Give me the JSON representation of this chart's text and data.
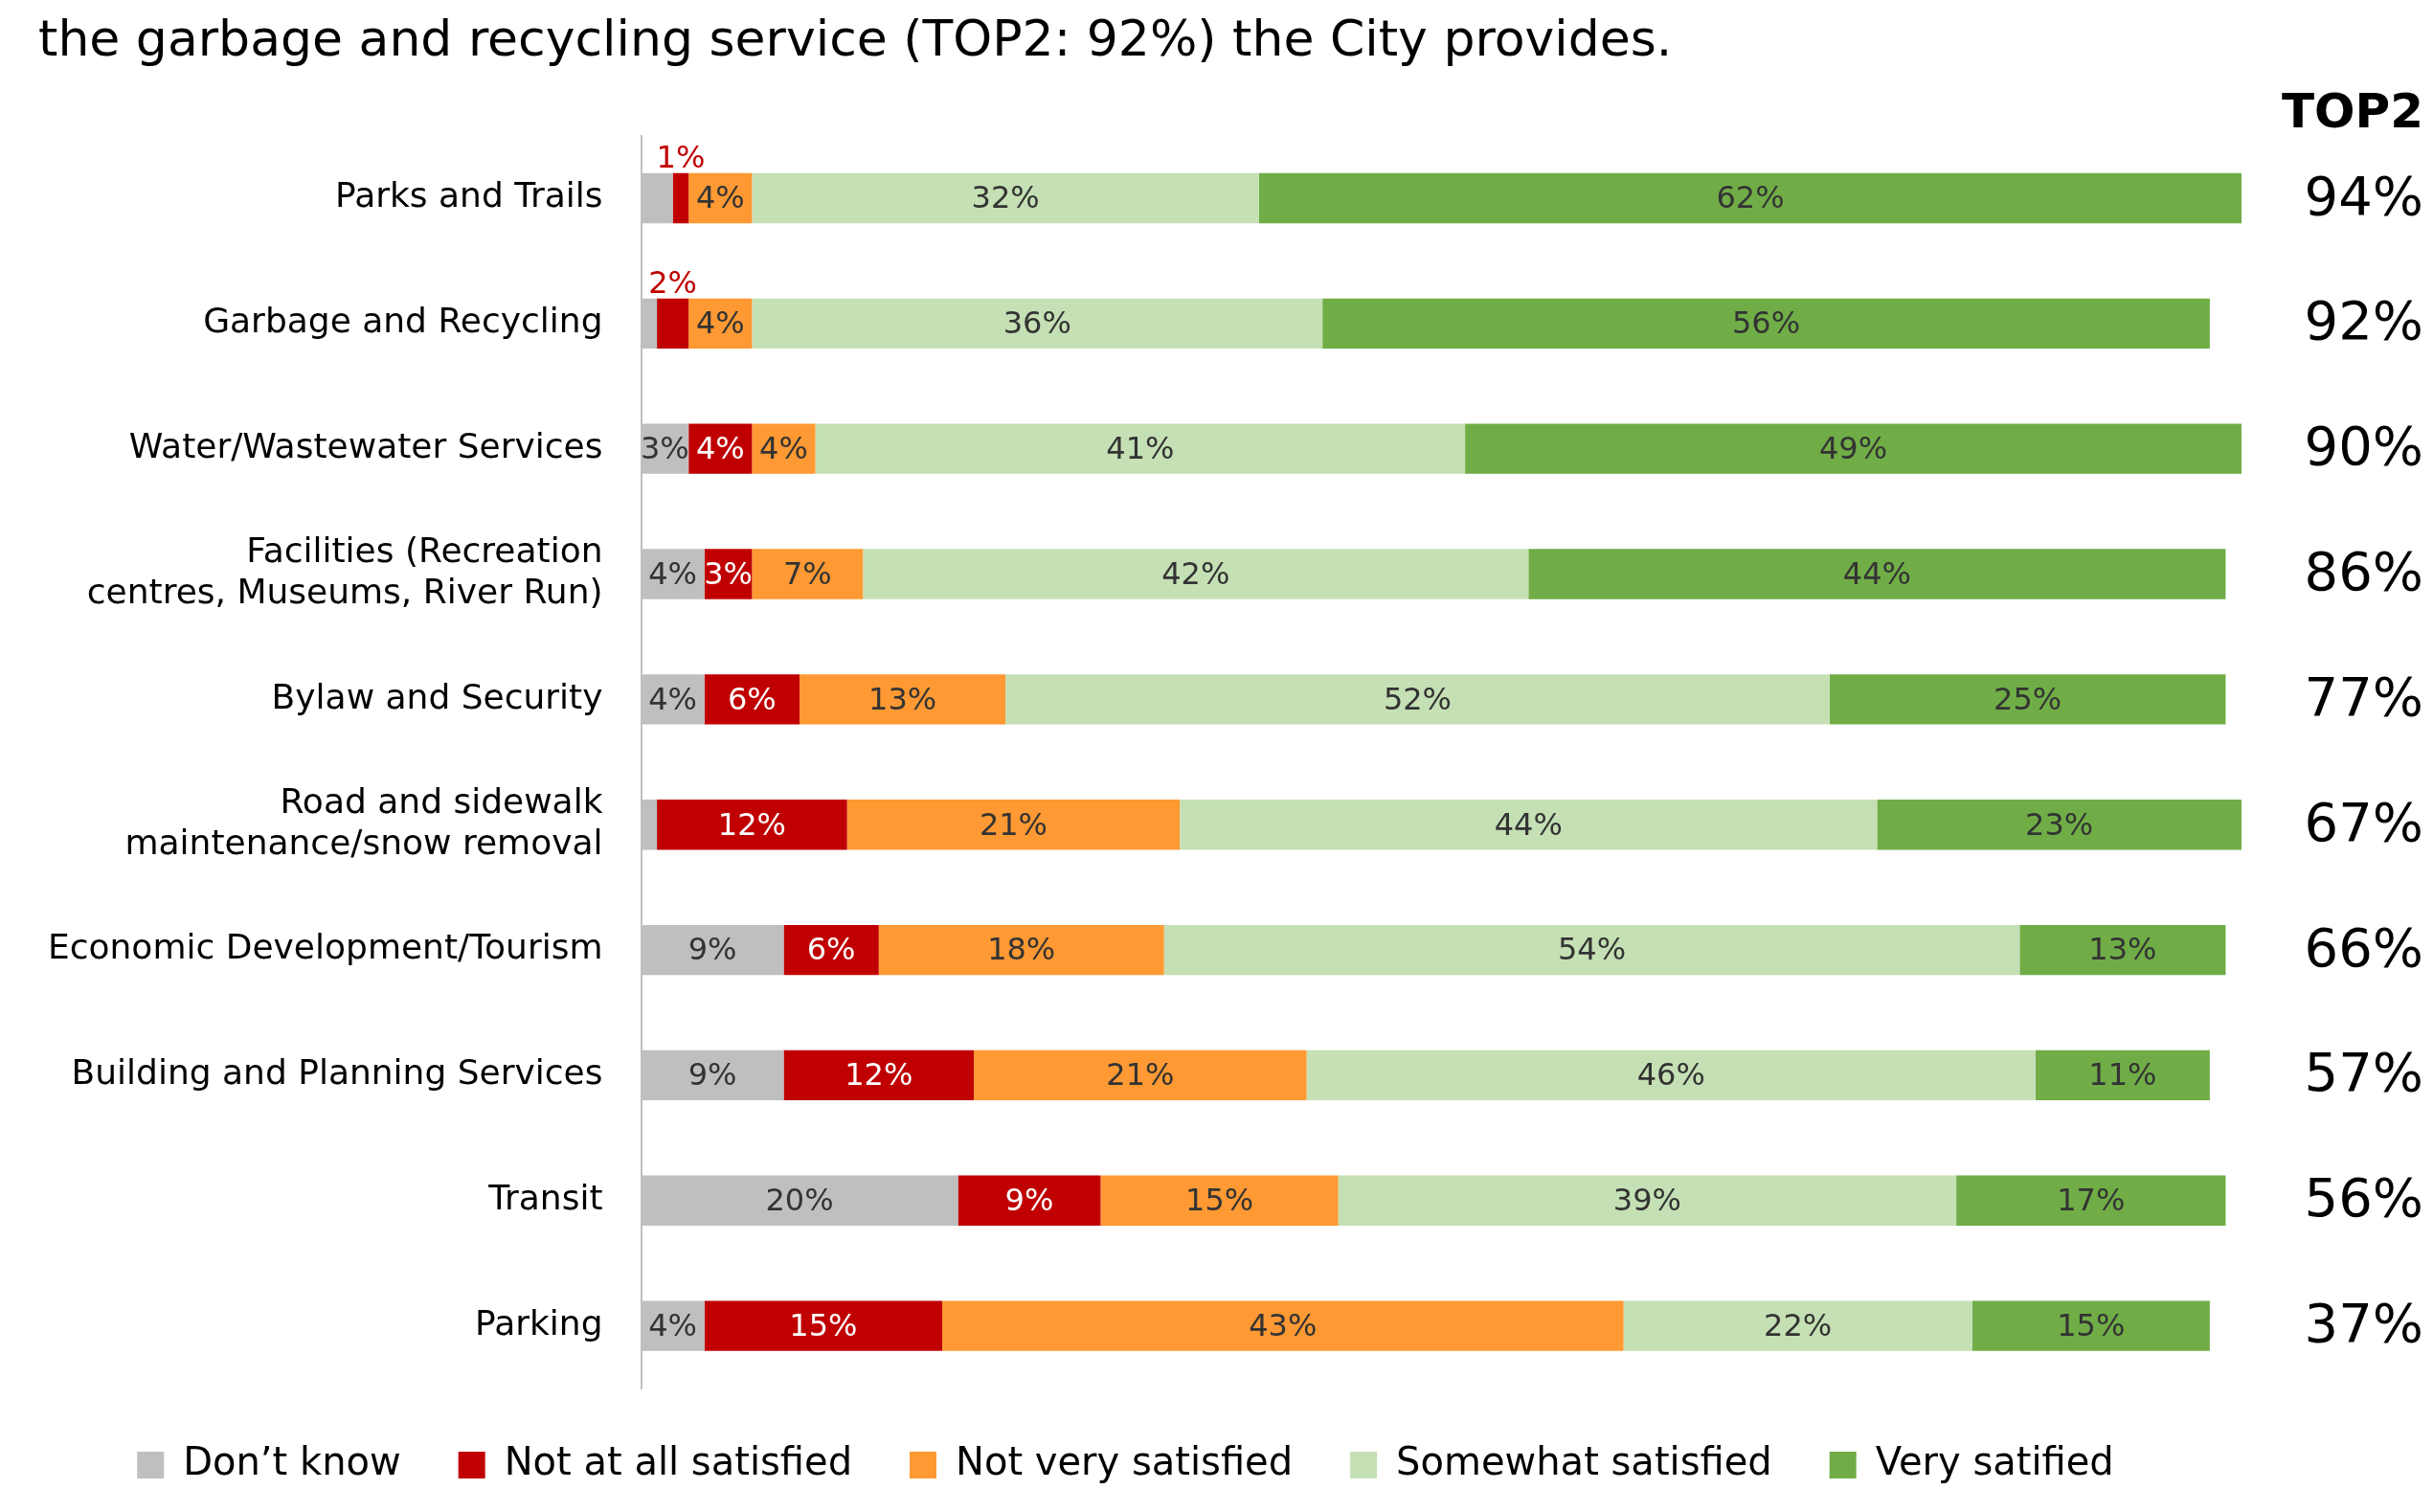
{
  "chart_data": {
    "type": "bar",
    "orientation": "horizontal",
    "stacked": true,
    "title": "the garbage and recycling service (TOP2: 92%) the City provides.",
    "categories": [
      "Parks and Trails",
      "Garbage and Recycling",
      "Water/Wastewater Services",
      "Facilities (Recreation centres, Museums, River Run)",
      "Bylaw and Security",
      "Road and sidewalk maintenance/snow removal",
      "Economic Development/Tourism",
      "Building and Planning Services",
      "Transit",
      "Parking"
    ],
    "series": [
      {
        "name": "Don’t know",
        "color": "#bfbfbf",
        "values": [
          2,
          1,
          3,
          4,
          4,
          1,
          9,
          9,
          20,
          4
        ],
        "value_labels": [
          null,
          null,
          "3%",
          "4%",
          "4%",
          null,
          "9%",
          "9%",
          "20%",
          "4%"
        ]
      },
      {
        "name": "Not at all satisfied",
        "color": "#c00000",
        "values": [
          1,
          2,
          4,
          3,
          6,
          12,
          6,
          12,
          9,
          15
        ],
        "value_labels": [
          "1%",
          "2%",
          "4%",
          "3%",
          "6%",
          "12%",
          "6%",
          "12%",
          "9%",
          "15%"
        ]
      },
      {
        "name": "Not very satisfied",
        "color": "#ff9933",
        "values": [
          4,
          4,
          4,
          7,
          13,
          21,
          18,
          21,
          15,
          43
        ],
        "value_labels": [
          "4%",
          "4%",
          "4%",
          "7%",
          "13%",
          "21%",
          "18%",
          "21%",
          "15%",
          "43%"
        ]
      },
      {
        "name": "Somewhat satisfied",
        "color": "#c5e0b4",
        "values": [
          32,
          36,
          41,
          42,
          52,
          44,
          54,
          46,
          39,
          22
        ],
        "value_labels": [
          "32%",
          "36%",
          "41%",
          "42%",
          "52%",
          "44%",
          "54%",
          "46%",
          "39%",
          "22%"
        ]
      },
      {
        "name": "Very satified",
        "color": "#70ad47",
        "values": [
          62,
          56,
          49,
          44,
          25,
          23,
          13,
          11,
          17,
          15
        ],
        "value_labels": [
          "62%",
          "56%",
          "49%",
          "44%",
          "25%",
          "23%",
          "13%",
          "11%",
          "17%",
          "15%"
        ]
      }
    ],
    "xlim": [
      0,
      101
    ],
    "tick_labels": "y",
    "grid": false,
    "legend": "bottom",
    "annotations": [
      "TOP2",
      "94%",
      "92%",
      "90%",
      "86%",
      "77%",
      "67%",
      "66%",
      "57%",
      "56%",
      "37%"
    ]
  }
}
